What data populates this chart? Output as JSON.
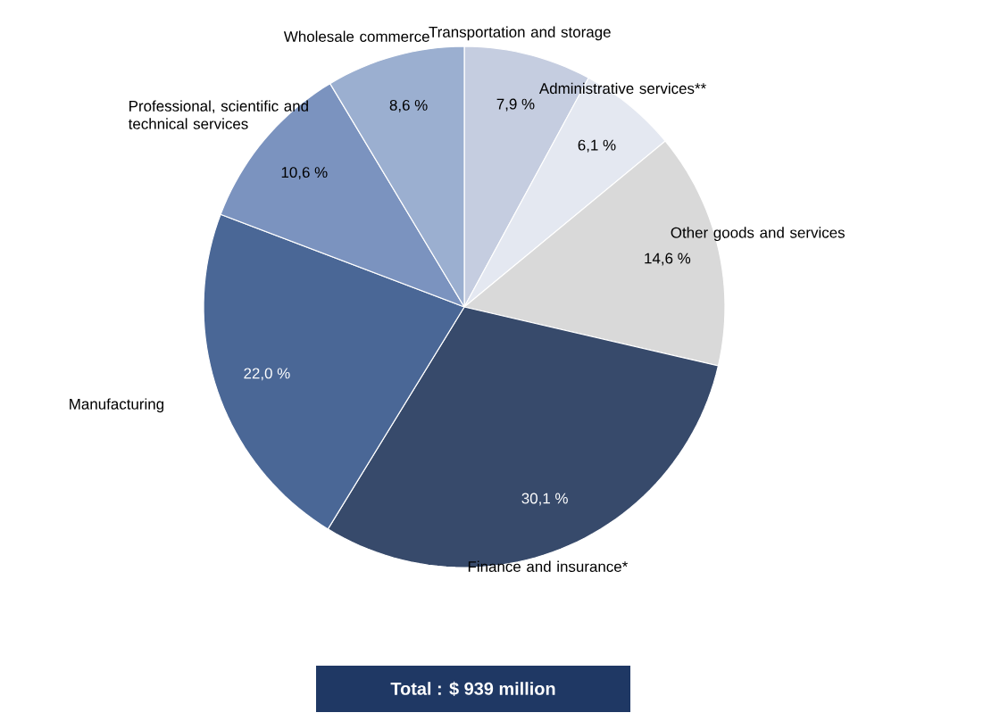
{
  "chart_data": {
    "type": "pie",
    "categories": [
      "Transportation and storage",
      "Administrative services**",
      "Other goods and services",
      "Finance and insurance*",
      "Manufacturing",
      "Professional, scientific and technical services",
      "Wholesale commerce"
    ],
    "values": [
      7.9,
      6.1,
      14.6,
      30.1,
      22.0,
      10.6,
      8.6
    ],
    "colors": [
      "#c5cde0",
      "#e4e8f1",
      "#d9d9d9",
      "#374a6b",
      "#4a6796",
      "#7b93bf",
      "#9bafd0"
    ],
    "value_labels": [
      "7,9 %",
      "6,1 %",
      "14,6 %",
      "30,1 %",
      "22,0 %",
      "10,6 %",
      "8,6 %"
    ],
    "annotations": [
      "Total : $ 939 million"
    ]
  }
}
